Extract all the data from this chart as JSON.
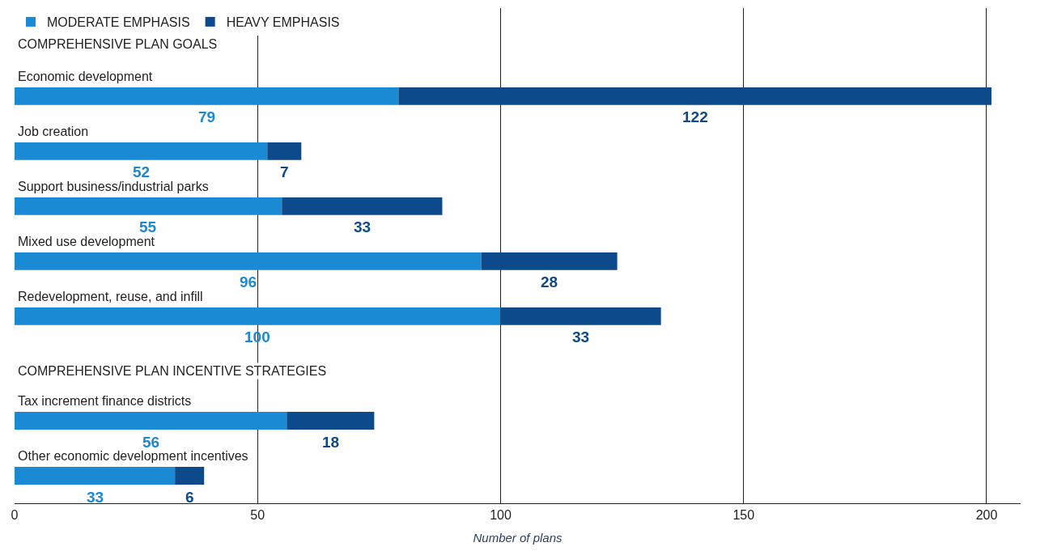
{
  "chart_data": {
    "type": "bar",
    "orientation": "horizontal",
    "stacked": true,
    "xlabel": "Number of plans",
    "categories": [
      "Economic development",
      "Job creation",
      "Support business/industrial parks",
      "Mixed use development",
      "Redevelopment, reuse, and infill",
      "Tax increment finance districts",
      "Other economic development incentives"
    ],
    "series": [
      {
        "name": "MODERATE EMPHASIS",
        "color": "#1a8ad4",
        "values": [
          79,
          52,
          55,
          96,
          100,
          56,
          33
        ]
      },
      {
        "name": "HEAVY EMPHASIS",
        "color": "#0d4a8c",
        "values": [
          122,
          7,
          33,
          28,
          33,
          18,
          6
        ]
      }
    ],
    "annotations": [
      "COMPREHENSIVE PLAN GOALS",
      "COMPREHENSIVE PLAN INCENTIVE STRATEGIES"
    ],
    "xlim": [
      0,
      207
    ],
    "xticks": [
      0,
      50,
      100,
      150,
      200
    ],
    "grid": "x",
    "legend": "top left",
    "data_labels": true
  }
}
